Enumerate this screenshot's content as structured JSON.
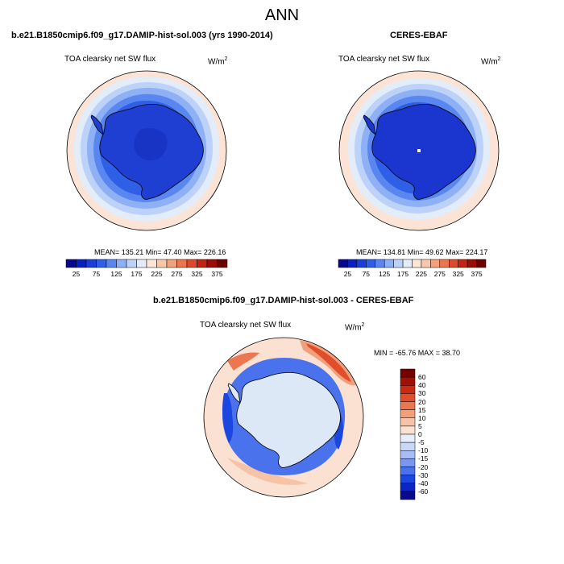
{
  "page_title": "ANN",
  "panels": [
    {
      "title": "b.e21.B1850cmip6.f09_g17.DAMIP-hist-sol.003 (yrs 1990-2014)",
      "variable": "TOA clearsky net SW flux",
      "units_base": "W/m",
      "units_exp": "2",
      "stats": "MEAN= 135.21  Min=  47.40  Max= 226.16",
      "colorbar_ticks": [
        "25",
        "75",
        "125",
        "175",
        "225",
        "275",
        "325",
        "375"
      ]
    },
    {
      "title": "CERES-EBAF",
      "variable": "TOA clearsky net SW flux",
      "units_base": "W/m",
      "units_exp": "2",
      "stats": "MEAN= 134.81  Min=  49.62  Max= 224.17",
      "colorbar_ticks": [
        "25",
        "75",
        "125",
        "175",
        "225",
        "275",
        "325",
        "375"
      ]
    }
  ],
  "diff_panel": {
    "title": "b.e21.B1850cmip6.f09_g17.DAMIP-hist-sol.003 - CERES-EBAF",
    "variable": "TOA clearsky net SW flux",
    "units_base": "W/m",
    "units_exp": "2",
    "stats": "MIN = -65.76 MAX =  38.70",
    "colorbar_ticks": [
      "60",
      "40",
      "30",
      "20",
      "15",
      "10",
      "5",
      "0",
      "-5",
      "-10",
      "-15",
      "-20",
      "-30",
      "-40",
      "-60"
    ]
  },
  "colors": {
    "abs_scale": [
      "#08088a",
      "#0a1fbf",
      "#1a3fd6",
      "#2f5fe6",
      "#5a87ef",
      "#8eb0f5",
      "#bcd2f8",
      "#e3ecf9",
      "#fde6d5",
      "#f9c7aa",
      "#f4a07b",
      "#ec7650",
      "#db4a2c",
      "#c22413",
      "#9c0b06",
      "#6b0000"
    ],
    "diff_scale": [
      "#0a0a8c",
      "#0c25c7",
      "#1b46e0",
      "#4a72ec",
      "#7a98f0",
      "#a6bdf5",
      "#cad8f8",
      "#e6eefb",
      "#fbe1d2",
      "#f7c3a6",
      "#f2a07c",
      "#ec7650",
      "#e04e2c",
      "#c82a12",
      "#a10f05",
      "#750000"
    ],
    "ocean_outer": "#fbe4d6",
    "antarctica_model": "#1f3fd2",
    "antarctica_obs": "#1a36cf",
    "diff_land": "#dde8f7"
  }
}
